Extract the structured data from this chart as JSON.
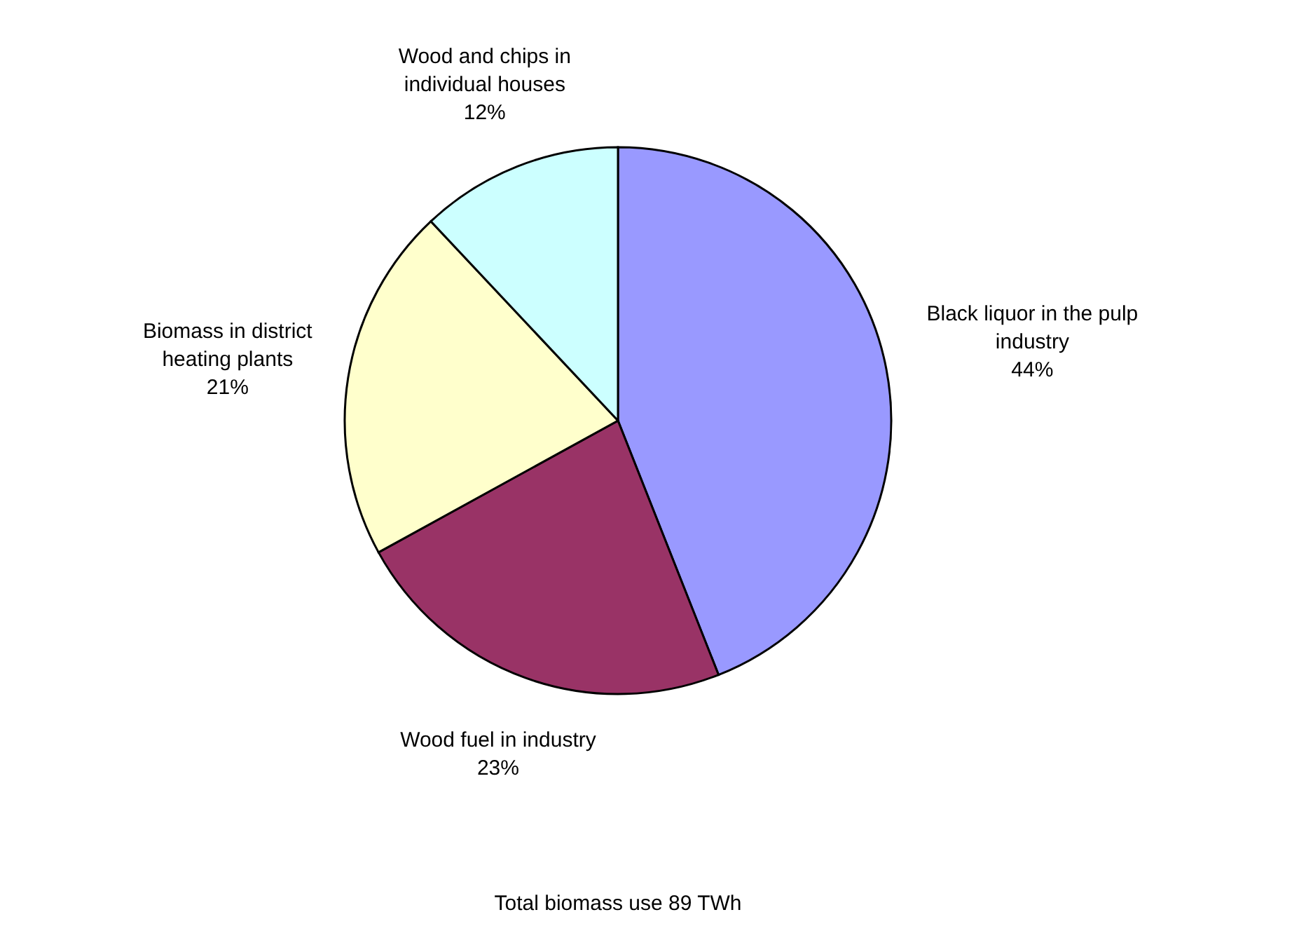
{
  "chart_data": {
    "type": "pie",
    "categories": [
      "Black liquor in the pulp\nindustry",
      "Wood fuel in industry",
      "Biomass in district\nheating plants",
      "Wood and chips in\nindividual houses"
    ],
    "values": [
      44,
      23,
      21,
      12
    ],
    "value_labels": [
      "44%",
      "23%",
      "21%",
      "12%"
    ],
    "colors": [
      "#9999ff",
      "#993366",
      "#ffffcc",
      "#ccffff"
    ],
    "annotations": [
      "Total biomass use 89 TWh"
    ]
  }
}
